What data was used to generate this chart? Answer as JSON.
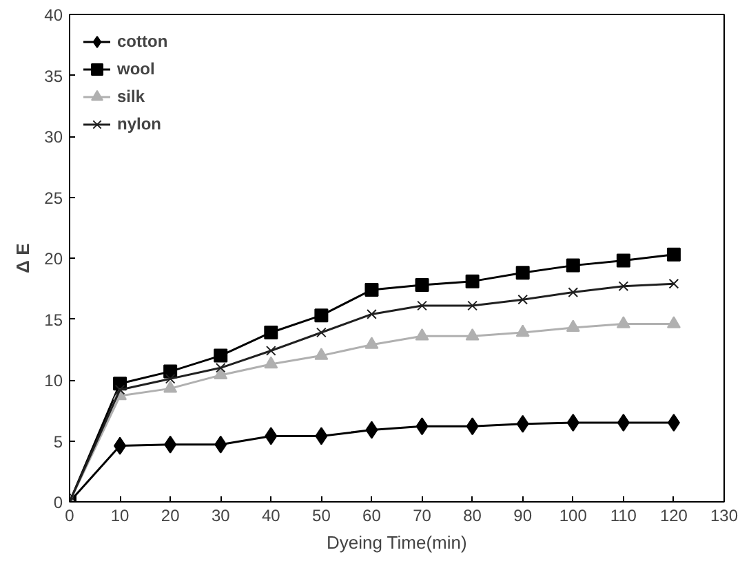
{
  "chart_data": {
    "type": "line",
    "xlabel": "Dyeing Time(min)",
    "ylabel": "Δ E",
    "x": [
      0,
      10,
      20,
      30,
      40,
      50,
      60,
      70,
      80,
      90,
      100,
      110,
      120
    ],
    "series": [
      {
        "name": "cotton",
        "color": "#000000",
        "marker": "diamond",
        "values": [
          0,
          4.6,
          4.7,
          4.7,
          5.4,
          5.4,
          5.9,
          6.2,
          6.2,
          6.4,
          6.5,
          6.5,
          6.5
        ]
      },
      {
        "name": "wool",
        "color": "#000000",
        "marker": "square",
        "values": [
          0,
          9.7,
          10.7,
          12.0,
          13.9,
          15.3,
          17.4,
          17.8,
          18.1,
          18.8,
          19.4,
          19.8,
          20.3
        ]
      },
      {
        "name": "silk",
        "color": "#b0b0b0",
        "marker": "triangle",
        "values": [
          0,
          8.7,
          9.3,
          10.4,
          11.3,
          12.0,
          12.9,
          13.6,
          13.6,
          13.9,
          14.3,
          14.6,
          14.6
        ]
      },
      {
        "name": "nylon",
        "color": "#202020",
        "marker": "cross",
        "values": [
          0,
          9.2,
          10.1,
          11.0,
          12.4,
          13.9,
          15.4,
          16.1,
          16.1,
          16.6,
          17.2,
          17.7,
          17.9
        ]
      }
    ],
    "xlim": [
      0,
      130
    ],
    "xticks": [
      0,
      10,
      20,
      30,
      40,
      50,
      60,
      70,
      80,
      90,
      100,
      110,
      120,
      130
    ],
    "ylim": [
      0,
      40
    ],
    "yticks": [
      0,
      5,
      10,
      15,
      20,
      25,
      30,
      35,
      40
    ],
    "grid": false,
    "legend": "top left",
    "line_style": "solid"
  }
}
